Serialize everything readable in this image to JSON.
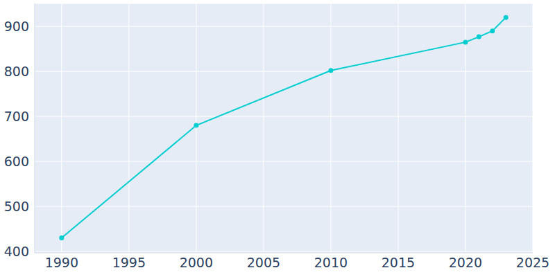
{
  "chart_data": {
    "type": "line",
    "x": [
      1990,
      2000,
      2010,
      2020,
      2021,
      2022,
      2023
    ],
    "values": [
      430,
      680,
      802,
      865,
      877,
      890,
      920
    ],
    "color": "#00ced1",
    "xlim": [
      1988,
      2025
    ],
    "xticks": [
      1990,
      1995,
      2000,
      2005,
      2010,
      2015,
      2020,
      2025
    ],
    "ylim": [
      397,
      951
    ],
    "yticks": [
      400,
      500,
      600,
      700,
      800,
      900
    ],
    "grid": true,
    "marker": "circle"
  }
}
